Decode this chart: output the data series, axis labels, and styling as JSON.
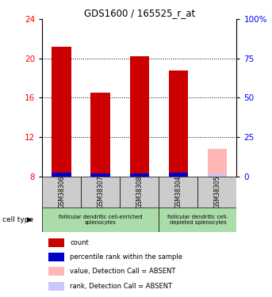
{
  "title": "GDS1600 / 165525_r_at",
  "samples": [
    "GSM38306",
    "GSM38307",
    "GSM38308",
    "GSM38304",
    "GSM38305"
  ],
  "count_values": [
    21.2,
    16.5,
    20.2,
    18.8,
    null
  ],
  "rank_values": [
    8.4,
    8.3,
    8.3,
    8.4,
    null
  ],
  "absent_value": [
    null,
    null,
    null,
    null,
    10.8
  ],
  "absent_rank": [
    null,
    null,
    null,
    null,
    8.2
  ],
  "ylim_left": [
    8,
    24
  ],
  "ylim_right": [
    0,
    100
  ],
  "yticks_left": [
    8,
    12,
    16,
    20,
    24
  ],
  "yticks_right": [
    0,
    25,
    50,
    75,
    100
  ],
  "count_color": "#cc0000",
  "rank_color": "#0000cc",
  "absent_value_color": "#ffb6b6",
  "absent_rank_color": "#c8c8ff",
  "bar_width": 0.5,
  "cell_type_groups": [
    {
      "label": "follicular dendritic cell-enriched\nsplenocytes",
      "cols": [
        0,
        1,
        2
      ],
      "color": "#aaddaa"
    },
    {
      "label": "follicular dendritic cell-\ndepleted splenocytes",
      "cols": [
        3,
        4
      ],
      "color": "#aaddaa"
    }
  ],
  "sample_bg_color": "#cccccc",
  "legend_items": [
    {
      "color": "#cc0000",
      "label": "count"
    },
    {
      "color": "#0000cc",
      "label": "percentile rank within the sample"
    },
    {
      "color": "#ffb6b6",
      "label": "value, Detection Call = ABSENT"
    },
    {
      "color": "#c8c8ff",
      "label": "rank, Detection Call = ABSENT"
    }
  ]
}
